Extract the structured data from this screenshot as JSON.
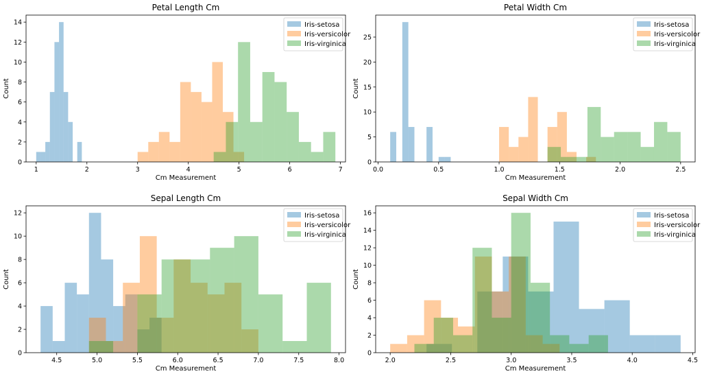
{
  "colors": {
    "setosa": "#1f77b4",
    "versicolor": "#ff7f0e",
    "virginica": "#2ca02c"
  },
  "chart_data": [
    {
      "type": "histogram",
      "title": "Petal Length Cm",
      "xlabel": "Cm Measurement",
      "ylabel": "Count",
      "xlim": [
        0.8,
        7.1
      ],
      "ylim": [
        0,
        14.7
      ],
      "xticks": [
        1,
        2,
        3,
        4,
        5,
        6,
        7
      ],
      "yticks": [
        0,
        2,
        4,
        6,
        8,
        10,
        12,
        14
      ],
      "legend": "top-right",
      "series": [
        {
          "name": "Iris-setosa",
          "color_key": "setosa",
          "bins": [
            1.0,
            1.09,
            1.18,
            1.27,
            1.36,
            1.45,
            1.54,
            1.63,
            1.72,
            1.81,
            1.9
          ],
          "counts": [
            1,
            1,
            2,
            7,
            12,
            14,
            7,
            4,
            0,
            2
          ]
        },
        {
          "name": "Iris-versicolor",
          "color_key": "versicolor",
          "bins": [
            3.0,
            3.21,
            3.42,
            3.63,
            3.84,
            4.05,
            4.26,
            4.47,
            4.68,
            4.89,
            5.1
          ],
          "counts": [
            1,
            2,
            3,
            2,
            8,
            7,
            6,
            10,
            5,
            1
          ]
        },
        {
          "name": "Iris-virginica",
          "color_key": "virginica",
          "bins": [
            4.5,
            4.74,
            4.98,
            5.22,
            5.46,
            5.7,
            5.94,
            6.18,
            6.42,
            6.66,
            6.9
          ],
          "counts": [
            1,
            4,
            12,
            4,
            9,
            8,
            5,
            2,
            1,
            3
          ]
        }
      ]
    },
    {
      "type": "histogram",
      "title": "Petal Width Cm",
      "xlabel": "Cm Measurement",
      "ylabel": "Count",
      "xlim": [
        -0.02,
        2.62
      ],
      "ylim": [
        0,
        29.4
      ],
      "xticks": [
        0.0,
        0.5,
        1.0,
        1.5,
        2.0,
        2.5
      ],
      "yticks": [
        0,
        5,
        10,
        15,
        20,
        25
      ],
      "legend": "top-right",
      "series": [
        {
          "name": "Iris-setosa",
          "color_key": "setosa",
          "bins": [
            0.1,
            0.15,
            0.2,
            0.25,
            0.3,
            0.35,
            0.4,
            0.45,
            0.5,
            0.55,
            0.6
          ],
          "counts": [
            6,
            0,
            28,
            7,
            0,
            0,
            7,
            0,
            1,
            1
          ]
        },
        {
          "name": "Iris-versicolor",
          "color_key": "versicolor",
          "bins": [
            1.0,
            1.08,
            1.16,
            1.24,
            1.32,
            1.4,
            1.48,
            1.56,
            1.64,
            1.72,
            1.8
          ],
          "counts": [
            7,
            3,
            5,
            13,
            0,
            7,
            10,
            2,
            0,
            1
          ]
        },
        {
          "name": "Iris-virginica",
          "color_key": "virginica",
          "bins": [
            1.4,
            1.51,
            1.62,
            1.73,
            1.84,
            1.95,
            2.06,
            2.17,
            2.28,
            2.39,
            2.5
          ],
          "counts": [
            3,
            1,
            1,
            11,
            5,
            6,
            6,
            3,
            8,
            6
          ]
        }
      ]
    },
    {
      "type": "histogram",
      "title": "Sepal Length Cm",
      "xlabel": "Cm Measurement",
      "ylabel": "Count",
      "xlim": [
        4.12,
        8.08
      ],
      "ylim": [
        0,
        12.6
      ],
      "xticks": [
        4.5,
        5.0,
        5.5,
        6.0,
        6.5,
        7.0,
        7.5,
        8.0
      ],
      "yticks": [
        0,
        2,
        4,
        6,
        8,
        10,
        12
      ],
      "legend": "top-right",
      "series": [
        {
          "name": "Iris-setosa",
          "color_key": "setosa",
          "bins": [
            4.3,
            4.45,
            4.6,
            4.75,
            4.9,
            5.05,
            5.2,
            5.35,
            5.5,
            5.65,
            5.8
          ],
          "counts": [
            4,
            1,
            6,
            5,
            12,
            8,
            4,
            5,
            2,
            3
          ]
        },
        {
          "name": "Iris-versicolor",
          "color_key": "versicolor",
          "bins": [
            4.9,
            5.11,
            5.32,
            5.53,
            5.74,
            5.95,
            6.16,
            6.37,
            6.58,
            6.79,
            7.0
          ],
          "counts": [
            3,
            1,
            6,
            10,
            3,
            8,
            6,
            5,
            6,
            2
          ]
        },
        {
          "name": "Iris-virginica",
          "color_key": "virginica",
          "bins": [
            4.9,
            5.2,
            5.5,
            5.8,
            6.1,
            6.4,
            6.7,
            7.0,
            7.3,
            7.6,
            7.9
          ],
          "counts": [
            1,
            0,
            5,
            8,
            8,
            9,
            10,
            5,
            1,
            6
          ]
        }
      ]
    },
    {
      "type": "histogram",
      "title": "Sepal Width Cm",
      "xlabel": "Cm Measurement",
      "ylabel": "Count",
      "xlim": [
        1.88,
        4.52
      ],
      "ylim": [
        0,
        16.8
      ],
      "xticks": [
        2.0,
        2.5,
        3.0,
        3.5,
        4.0,
        4.5
      ],
      "yticks": [
        0,
        2,
        4,
        6,
        8,
        10,
        12,
        14,
        16
      ],
      "legend": "top-right",
      "series": [
        {
          "name": "Iris-setosa",
          "color_key": "setosa",
          "bins": [
            2.3,
            2.51,
            2.72,
            2.93,
            3.14,
            3.35,
            3.56,
            3.77,
            3.98,
            4.19,
            4.4
          ],
          "counts": [
            1,
            0,
            7,
            11,
            7,
            15,
            5,
            6,
            2,
            2
          ]
        },
        {
          "name": "Iris-versicolor",
          "color_key": "versicolor",
          "bins": [
            2.0,
            2.14,
            2.28,
            2.42,
            2.56,
            2.7,
            2.84,
            2.98,
            3.12,
            3.26,
            3.4
          ],
          "counts": [
            1,
            2,
            6,
            4,
            3,
            11,
            7,
            11,
            2,
            1
          ]
        },
        {
          "name": "Iris-virginica",
          "color_key": "virginica",
          "bins": [
            2.2,
            2.36,
            2.52,
            2.68,
            2.84,
            3.0,
            3.16,
            3.32,
            3.48,
            3.64,
            3.8
          ],
          "counts": [
            1,
            4,
            2,
            12,
            4,
            16,
            8,
            2,
            1,
            2
          ]
        }
      ]
    }
  ]
}
